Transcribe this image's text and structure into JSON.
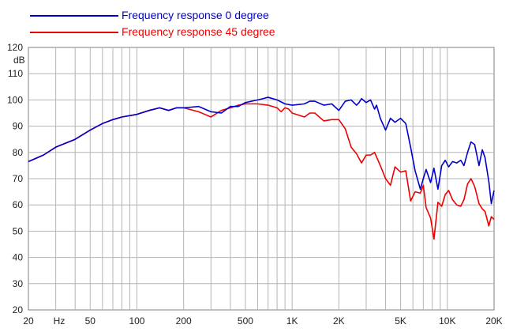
{
  "chart_data": {
    "type": "line",
    "title": "",
    "xlabel": "",
    "ylabel": "dB",
    "x_unit_label": "Hz",
    "xscale": "log",
    "xlim": [
      20,
      20000
    ],
    "ylim": [
      20,
      120
    ],
    "grid": true,
    "legend_position": "top-left",
    "x_tick_labels": [
      {
        "value": 20,
        "label": "20"
      },
      {
        "value": 50,
        "label": "50"
      },
      {
        "value": 100,
        "label": "100"
      },
      {
        "value": 200,
        "label": "200"
      },
      {
        "value": 500,
        "label": "500"
      },
      {
        "value": 1000,
        "label": "1K"
      },
      {
        "value": 2000,
        "label": "2K"
      },
      {
        "value": 5000,
        "label": "5K"
      },
      {
        "value": 10000,
        "label": "10K"
      },
      {
        "value": 20000,
        "label": "20K"
      }
    ],
    "y_ticks": [
      120,
      110,
      100,
      90,
      80,
      70,
      60,
      50,
      40,
      30,
      20
    ],
    "series": [
      {
        "name": "Frequency response 0 degree",
        "color": "#0000cc",
        "x": [
          20,
          25,
          30,
          40,
          50,
          60,
          70,
          80,
          100,
          120,
          140,
          160,
          180,
          200,
          250,
          300,
          350,
          400,
          450,
          500,
          600,
          650,
          700,
          800,
          900,
          1000,
          1200,
          1300,
          1400,
          1600,
          1800,
          2000,
          2200,
          2400,
          2600,
          2700,
          2800,
          3000,
          3200,
          3400,
          3500,
          3700,
          4000,
          4300,
          4600,
          5000,
          5400,
          5800,
          6200,
          6700,
          7000,
          7300,
          7800,
          8200,
          8700,
          9200,
          9700,
          10200,
          10800,
          11500,
          12200,
          12800,
          13500,
          14200,
          15000,
          16000,
          16800,
          17500,
          18500,
          19200,
          20000
        ],
        "y": [
          76.5,
          79,
          82,
          85,
          88.5,
          91,
          92.5,
          93.5,
          94.5,
          96,
          97,
          96,
          97,
          97,
          97.5,
          95.5,
          95,
          97.5,
          97.5,
          99,
          100,
          100.5,
          101,
          100,
          98.5,
          98,
          98.5,
          99.5,
          99.5,
          98,
          98.5,
          96,
          99.5,
          100,
          98,
          99,
          100.5,
          99,
          100,
          96.5,
          98,
          93,
          88.5,
          93,
          91.5,
          93,
          91,
          82,
          73,
          66,
          70,
          73.5,
          68.5,
          74,
          66,
          75,
          77,
          74.5,
          76.5,
          76,
          77,
          75,
          80,
          84,
          83,
          75,
          81,
          78,
          69,
          60.5,
          65.5
        ]
      },
      {
        "name": "Frequency response 45 degree",
        "color": "#ee0000",
        "x": [
          20,
          25,
          30,
          40,
          50,
          60,
          70,
          80,
          100,
          120,
          140,
          160,
          180,
          200,
          250,
          300,
          350,
          400,
          450,
          500,
          600,
          700,
          800,
          850,
          900,
          950,
          1000,
          1200,
          1300,
          1400,
          1600,
          1800,
          2000,
          2200,
          2400,
          2600,
          2800,
          3000,
          3200,
          3400,
          3700,
          4000,
          4300,
          4600,
          5000,
          5400,
          5800,
          6200,
          6700,
          7000,
          7300,
          7800,
          8200,
          8700,
          9200,
          9700,
          10200,
          10800,
          11500,
          12200,
          12800,
          13500,
          14200,
          15000,
          16000,
          16800,
          17500,
          18500,
          19200,
          20000
        ],
        "y": [
          76.5,
          79,
          82,
          85,
          88.5,
          91,
          92.5,
          93.5,
          94.5,
          96,
          97,
          96,
          97,
          97,
          95.5,
          93.5,
          96,
          97,
          98,
          98.5,
          98.5,
          98,
          97,
          95.5,
          97,
          96.5,
          95,
          93.5,
          95,
          95,
          92,
          92.5,
          92.5,
          89,
          82,
          79.5,
          76,
          79,
          79,
          80,
          75,
          70,
          67.5,
          74.5,
          72.5,
          73,
          61.5,
          65,
          64.5,
          67.5,
          59,
          55,
          47,
          61,
          59.5,
          64,
          65.5,
          62,
          60,
          59.5,
          62,
          68,
          70,
          67,
          60.5,
          58.5,
          57.5,
          52,
          55.5,
          54.5
        ]
      }
    ]
  }
}
